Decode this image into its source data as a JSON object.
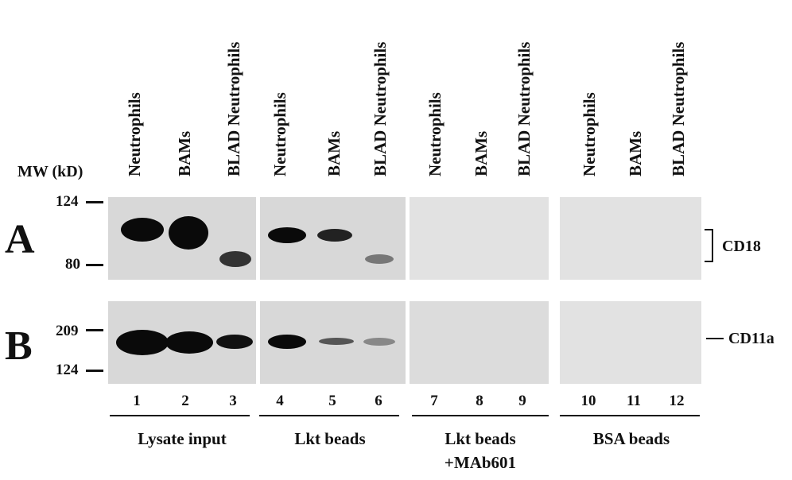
{
  "mw_title": "MW (kD)",
  "lane_labels": [
    "Neutrophils",
    "BAMs",
    "BLAD Neutrophils",
    "Neutrophils",
    "BAMs",
    "BLAD Neutrophils",
    "Neutrophils",
    "BAMs",
    "BLAD Neutrophils",
    "Neutrophils",
    "BAMs",
    "BLAD Neutrophils"
  ],
  "panel_a": {
    "letter": "A",
    "mw_top": "124",
    "mw_bottom": "80",
    "protein": "CD18"
  },
  "panel_b": {
    "letter": "B",
    "mw_top": "209",
    "mw_bottom": "124",
    "protein": "CD11a"
  },
  "lane_numbers": [
    "1",
    "2",
    "3",
    "4",
    "5",
    "6",
    "7",
    "8",
    "9",
    "10",
    "11",
    "12"
  ],
  "groups": {
    "g1": "Lysate input",
    "g2": "Lkt beads",
    "g3_line1": "Lkt beads",
    "g3_line2": "+MAb601",
    "g4": "BSA beads"
  }
}
